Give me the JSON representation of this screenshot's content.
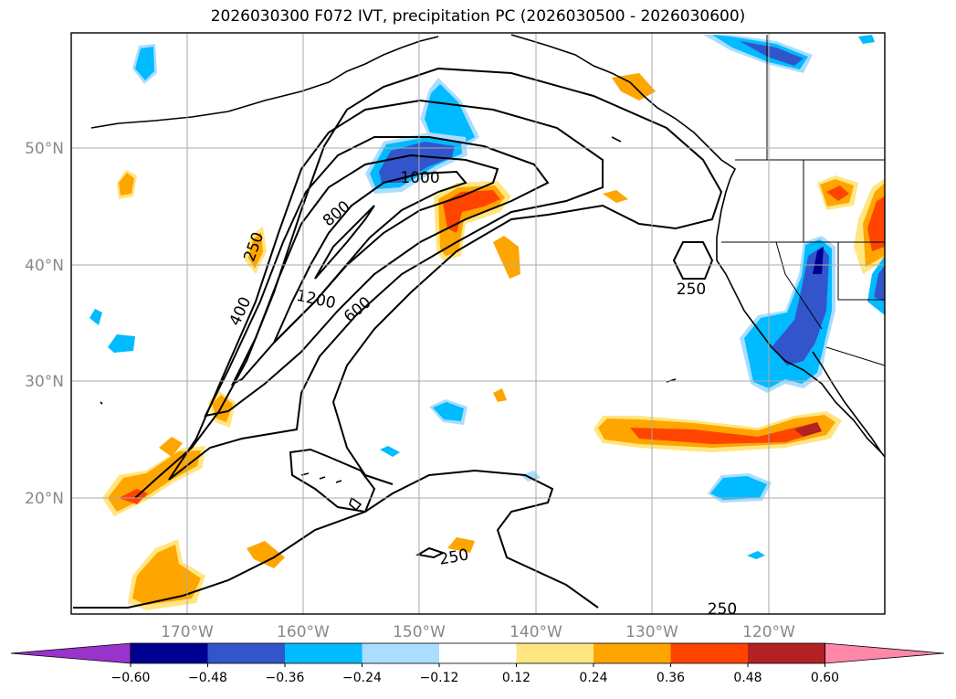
{
  "title": "2026030300 F072 IVT, precipitation PC (2026030500 - 2026030600)",
  "lat_labels": [
    "50°N",
    "40°N",
    "30°N",
    "20°N"
  ],
  "lon_labels": [
    "170°W",
    "160°W",
    "150°W",
    "140°W",
    "130°W",
    "120°W"
  ],
  "contour_labels": [
    "250",
    "400",
    "1200",
    "800",
    "1000",
    "600",
    "250",
    "250",
    "250"
  ],
  "colorbar": {
    "ticks": [
      "−0.60",
      "−0.48",
      "−0.36",
      "−0.24",
      "−0.12",
      "0.12",
      "0.24",
      "0.36",
      "0.48",
      "0.60"
    ],
    "colors": [
      "#9933cc",
      "#000090",
      "#3355cc",
      "#00bbff",
      "#aaddff",
      "#ffffff",
      "#ffe680",
      "#ffa500",
      "#ff4400",
      "#b22222",
      "#ff88aa"
    ]
  },
  "colors": {
    "warm_light": "#ffe680",
    "warm": "#ffa500",
    "warm_strong": "#ff4400",
    "warm_extreme": "#b22222",
    "cool_light": "#aaddff",
    "cool": "#00bbff",
    "cool_strong": "#3355cc",
    "cool_extreme": "#000090"
  }
}
